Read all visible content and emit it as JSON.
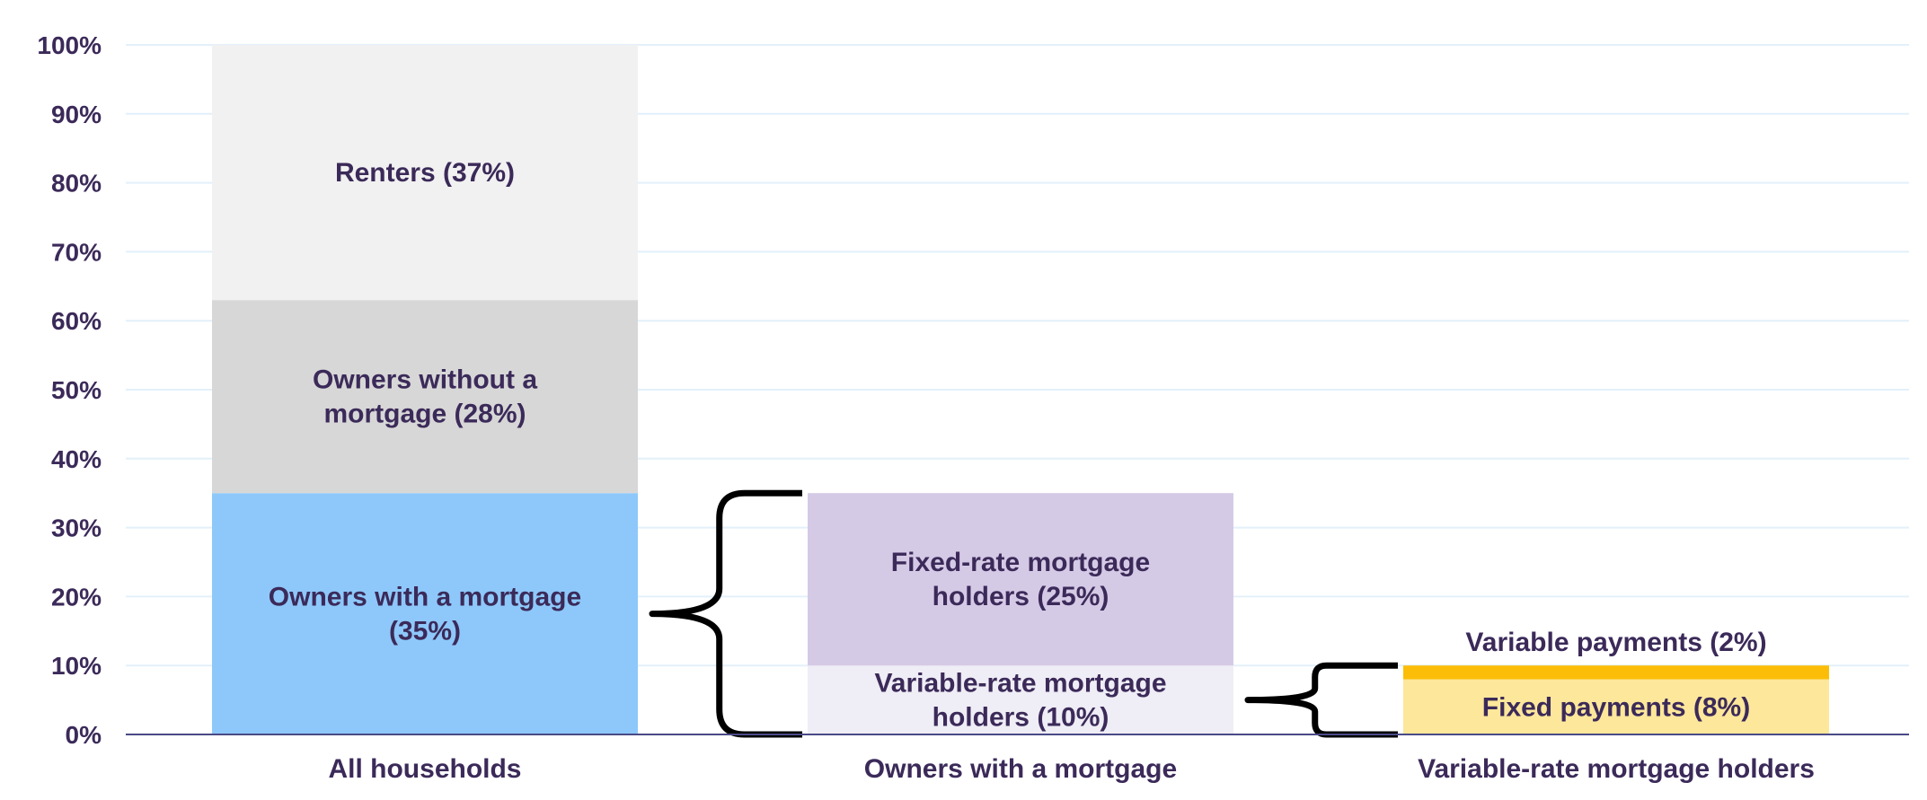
{
  "chart_data": {
    "type": "bar",
    "stacked": true,
    "ylim": [
      0,
      100
    ],
    "yticks": [
      0,
      10,
      20,
      30,
      40,
      50,
      60,
      70,
      80,
      90,
      100
    ],
    "ytick_labels": [
      "0%",
      "10%",
      "20%",
      "30%",
      "40%",
      "50%",
      "60%",
      "70%",
      "80%",
      "90%",
      "100%"
    ],
    "grid": true,
    "categories": [
      "All households",
      "Owners with a mortgage",
      "Variable-rate mortgage holders"
    ],
    "bars": [
      {
        "category": "All households",
        "segments": [
          {
            "label": [
              "Owners with a mortgage",
              "(35%)"
            ],
            "value": 35,
            "color": "#8ec8fb"
          },
          {
            "label": [
              "Owners without a",
              "mortgage (28%)"
            ],
            "value": 28,
            "color": "#d7d7d7"
          },
          {
            "label": [
              "Renters (37%)"
            ],
            "value": 37,
            "color": "#f1f1f1"
          }
        ]
      },
      {
        "category": "Owners with a mortgage",
        "segments": [
          {
            "label": [
              "Variable-rate mortgage",
              "holders (10%)"
            ],
            "value": 10,
            "color": "#efedf5"
          },
          {
            "label": [
              "Fixed-rate mortgage",
              "holders (25%)"
            ],
            "value": 25,
            "color": "#d5cae6"
          }
        ]
      },
      {
        "category": "Variable-rate mortgage holders",
        "segments": [
          {
            "label": [
              "Fixed payments (8%)"
            ],
            "value": 8,
            "color": "#fde79b"
          },
          {
            "label": [
              "Variable payments (2%)"
            ],
            "value": 2,
            "color": "#fbbd08",
            "label_outside": true
          }
        ]
      }
    ],
    "braces": [
      {
        "from_bar": 0,
        "to_bar": 1,
        "range": [
          0,
          35
        ]
      },
      {
        "from_bar": 1,
        "to_bar": 2,
        "range": [
          0,
          10
        ]
      }
    ],
    "colors": {
      "text": "#3b2a59",
      "grid": "#e3f0fa",
      "axis": "#4a4a86"
    }
  }
}
